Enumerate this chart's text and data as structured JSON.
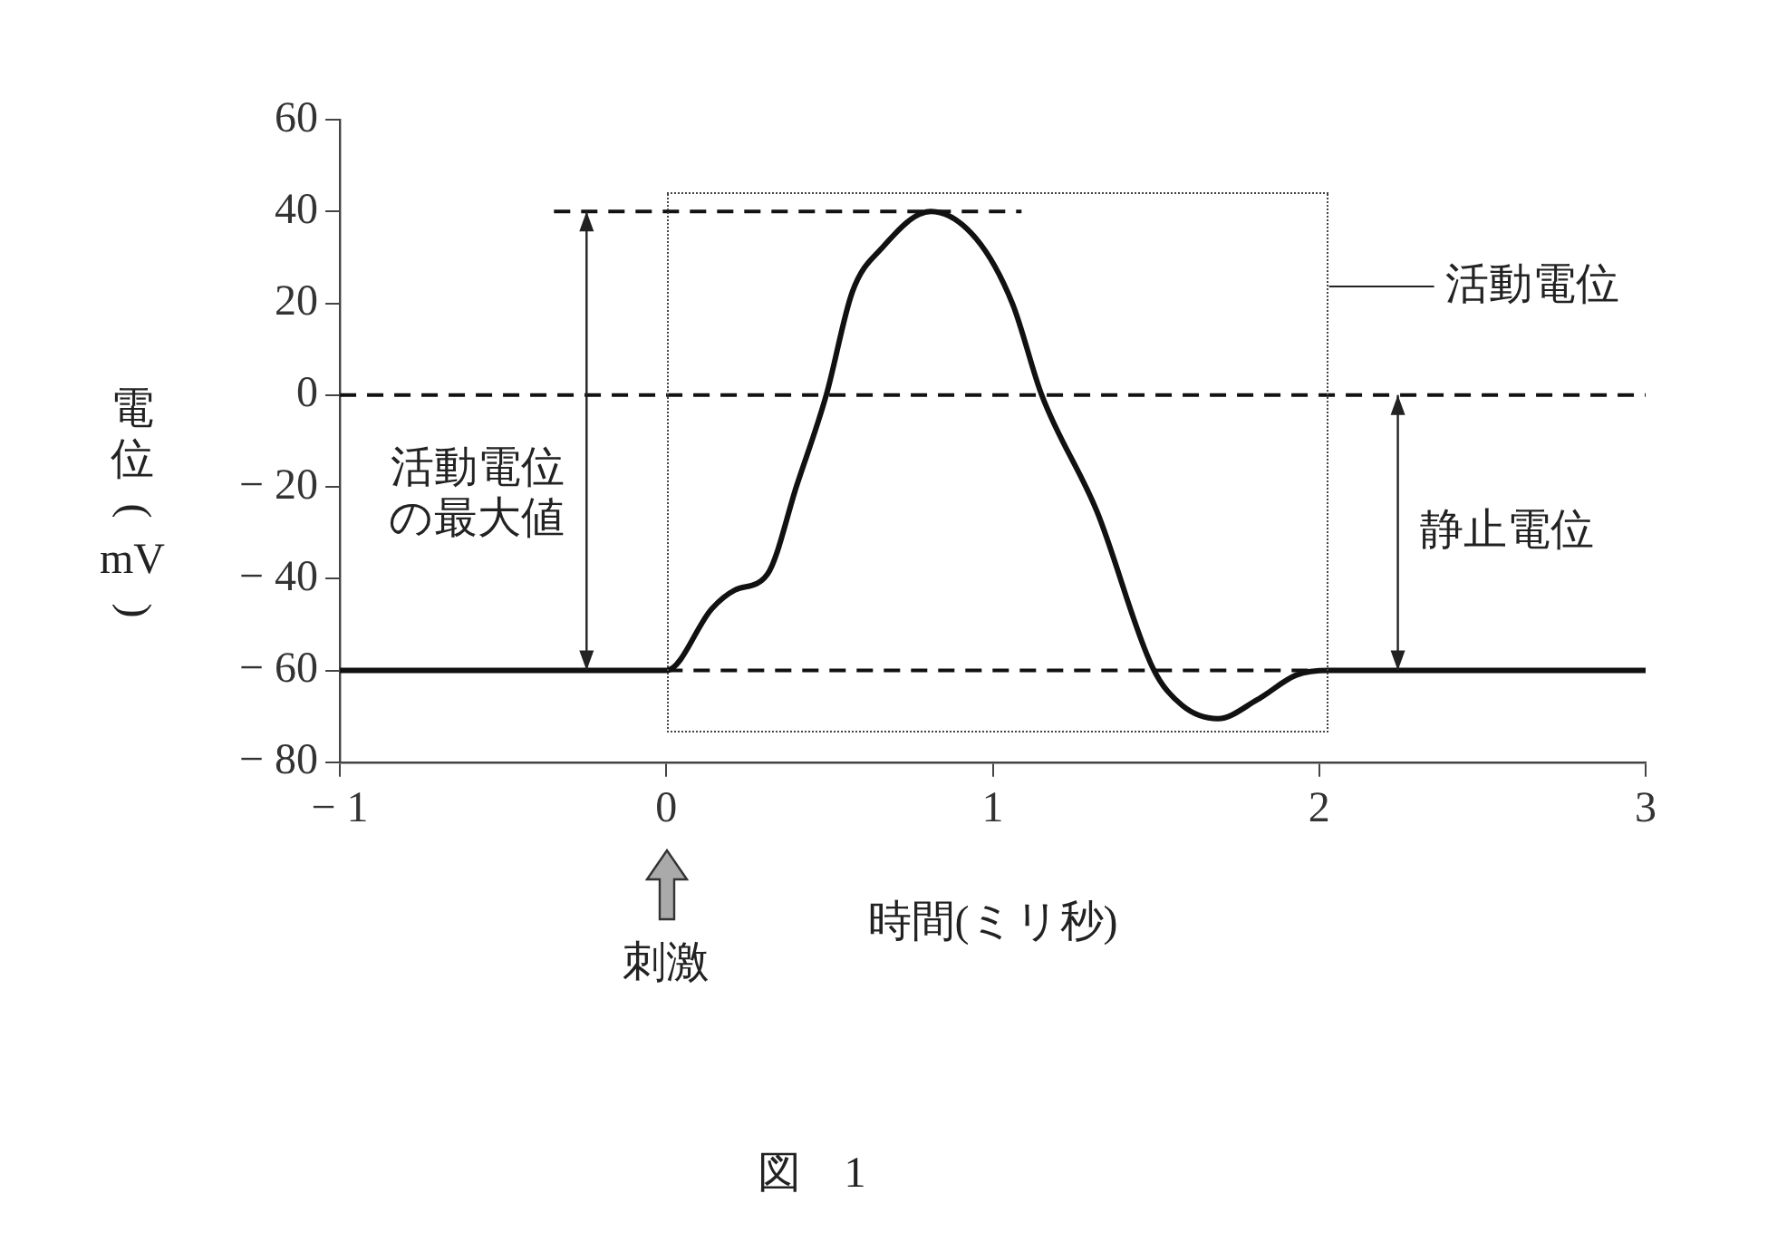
{
  "chart_data": {
    "type": "line",
    "xlabel": "時間(ミリ秒)",
    "ylabel": "電位(mV)",
    "x": [
      -1,
      0,
      0.14,
      0.21,
      0.31,
      0.4,
      0.49,
      0.57,
      0.66,
      0.81,
      0.95,
      1.06,
      1.15,
      1.32,
      1.49,
      1.58,
      1.69,
      1.81,
      1.93,
      2.03,
      3
    ],
    "series": [
      {
        "color": "#111111",
        "values": [
          -60,
          -60,
          -46.5,
          -42.5,
          -39,
          -19.6,
          0,
          22.5,
          32,
          40,
          34,
          20,
          0,
          -25.5,
          -59.4,
          -67.6,
          -70.5,
          -66.4,
          -61,
          -60,
          -60
        ]
      }
    ],
    "xlim": [
      -1,
      3
    ],
    "xticks": [
      {
        "value": -1,
        "label": "− 1"
      },
      0,
      1,
      2,
      3
    ],
    "ylim": [
      -80,
      60
    ],
    "yticks": [
      {
        "value": -80,
        "label": "− 80"
      },
      {
        "value": -60,
        "label": "− 60"
      },
      {
        "value": -40,
        "label": "− 40"
      },
      {
        "value": -20,
        "label": "− 20"
      },
      0,
      20,
      40,
      60
    ],
    "ref_lines": [
      {
        "axis": "y",
        "value": 0,
        "line_style": "dashed"
      },
      {
        "axis": "y",
        "value": 40,
        "line_style": "dashed"
      },
      {
        "axis": "y",
        "value": -60,
        "line_style": "dashed"
      }
    ],
    "annotations": [
      "活動電位の最大値",
      "静止電位",
      "刺激",
      "活動電位",
      "図　1"
    ],
    "marker": "none",
    "line_style": "solid",
    "grid": false
  }
}
